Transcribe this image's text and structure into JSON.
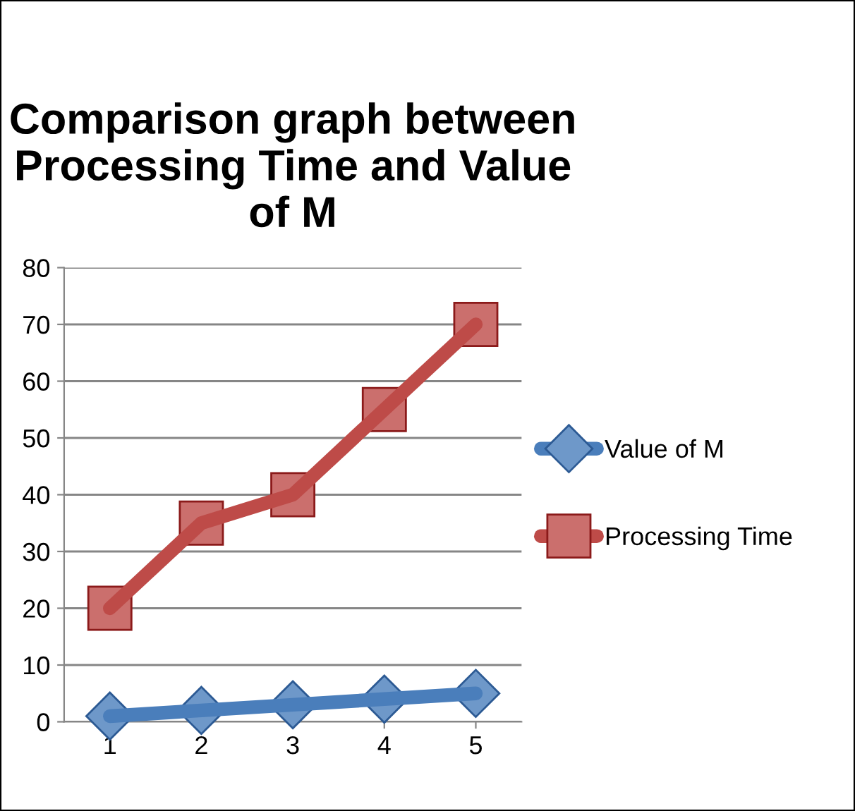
{
  "chart_data": {
    "type": "line",
    "title": "Comparison graph between Processing Time and Value of M",
    "categories": [
      "1",
      "2",
      "3",
      "4",
      "5"
    ],
    "series": [
      {
        "name": "Value of M",
        "color": "#4a7ebb",
        "marker": "diamond",
        "values": [
          1,
          2,
          3,
          4,
          5
        ]
      },
      {
        "name": "Processing Time",
        "color": "#be4b48",
        "marker": "square",
        "values": [
          20,
          35,
          40,
          55,
          70
        ]
      }
    ],
    "ylim": [
      0,
      80
    ],
    "yticks": [
      0,
      10,
      20,
      30,
      40,
      50,
      60,
      70,
      80
    ],
    "grid": "y",
    "legend": "right"
  }
}
